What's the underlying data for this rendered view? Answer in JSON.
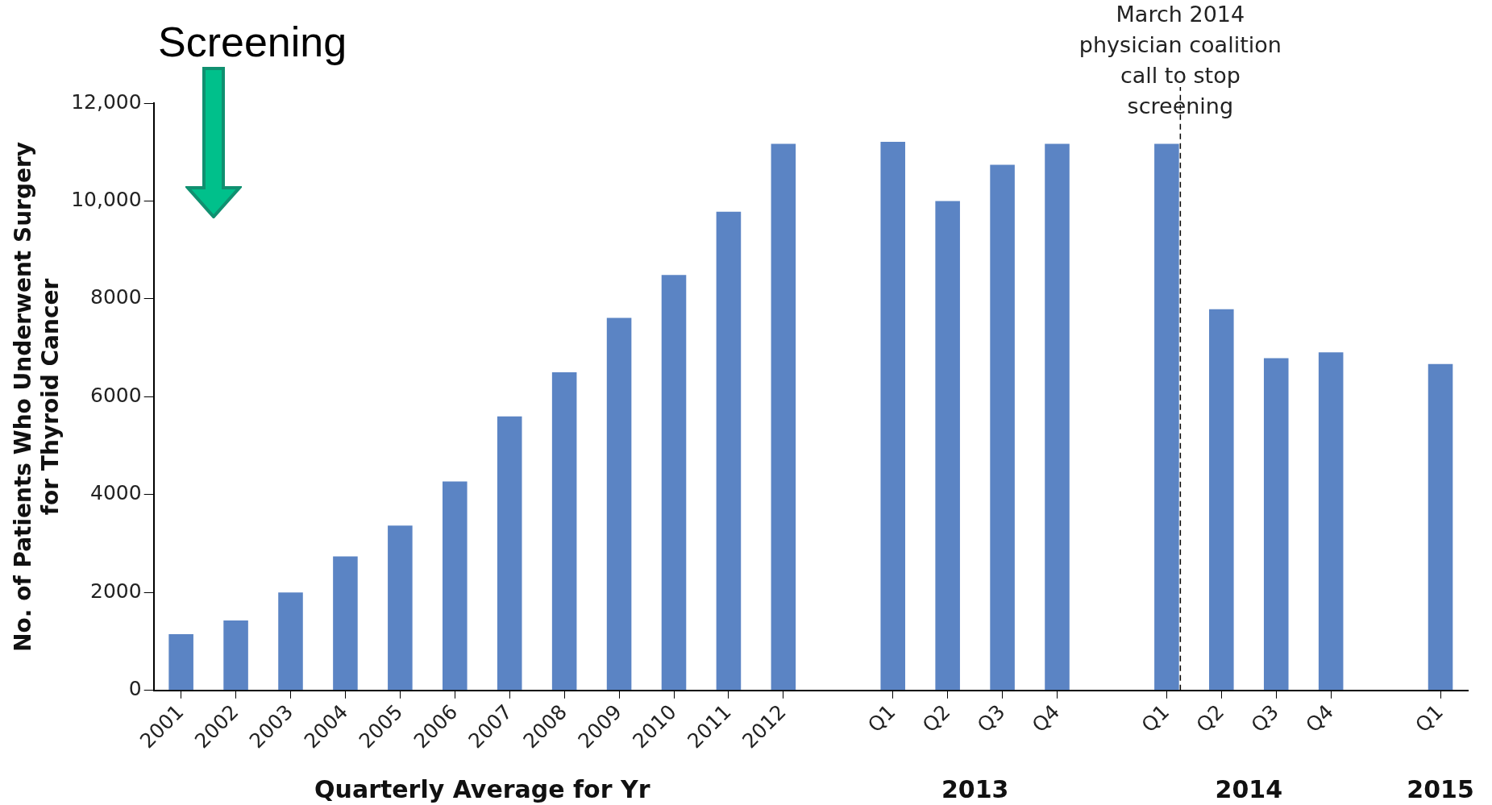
{
  "chart_data": {
    "type": "bar",
    "xlabel": "Quarterly Average for Yr",
    "ylabel": "No. of Patients Who Underwent Surgery\nfor Thyroid Cancer",
    "categories": [
      "2001",
      "2002",
      "2003",
      "2004",
      "2005",
      "2006",
      "2007",
      "2008",
      "2009",
      "2010",
      "2011",
      "2012",
      null,
      "Q1",
      "Q2",
      "Q3",
      "Q4",
      null,
      "Q1",
      "Q2",
      "Q3",
      "Q4",
      null,
      "Q1"
    ],
    "values": [
      1150,
      1430,
      2000,
      2740,
      3370,
      4270,
      5600,
      6500,
      7610,
      8490,
      9780,
      11170,
      null,
      11210,
      10000,
      10740,
      11170,
      null,
      11170,
      7790,
      6790,
      6910,
      null,
      6670
    ],
    "color": "#5b84c4",
    "ylim": [
      0,
      12000
    ],
    "yticks": [
      0,
      2000,
      4000,
      6000,
      8000,
      {
        "value": 10000,
        "label": "10,000"
      },
      {
        "value": 12000,
        "label": "12,000"
      }
    ],
    "grid": false,
    "legend": false,
    "annotations": [
      "Screening",
      "March 2014\nphysician coalition\ncall to stop\nscreening",
      "2013",
      "2014",
      "2015"
    ]
  }
}
